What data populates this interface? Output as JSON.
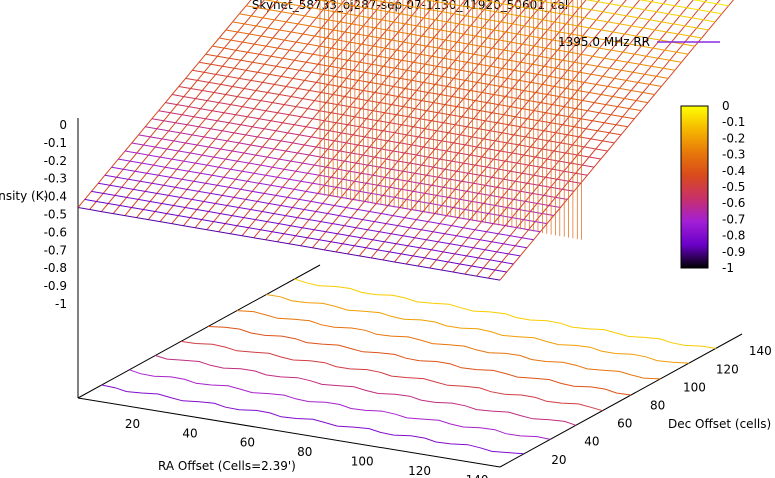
{
  "chart_data": {
    "type": "surface",
    "title": "Skynet_58733_oj287-sep-07-1130_41920_50601_cal",
    "xlabel": "RA Offset (Cells=2.39')",
    "ylabel": "Dec Offset (cells)",
    "zlabel": "Intensity (K)",
    "xticks": [
      "20",
      "40",
      "60",
      "80",
      "100",
      "120",
      "140"
    ],
    "yticks": [
      "20",
      "40",
      "60",
      "80",
      "100",
      "120",
      "140"
    ],
    "zticks": [
      "0",
      "-0.1",
      "-0.2",
      "-0.3",
      "-0.4",
      "-0.5",
      "-0.6",
      "-0.7",
      "-0.8",
      "-0.9",
      "-1"
    ],
    "xlim": [
      1,
      148
    ],
    "ylim": [
      1,
      148
    ],
    "zlim": [
      -1,
      0
    ],
    "series": [
      {
        "name": "1395.0 MHz RR",
        "color": "#8a2be2",
        "surface_model": "plane",
        "corner_values": {
          "ra_1_dec_1": -0.88,
          "ra_148_dec_1": -0.9,
          "ra_1_dec_148": 0.0,
          "ra_148_dec_148": -0.02
        }
      }
    ],
    "colorbox": {
      "range": [
        -1,
        0
      ],
      "ticks": [
        "0",
        "-0.1",
        "-0.2",
        "-0.3",
        "-0.4",
        "-0.5",
        "-0.6",
        "-0.7",
        "-0.8",
        "-0.9",
        "-1"
      ],
      "palette": [
        "#000000",
        "#6a00c8",
        "#a21fd6",
        "#c8306a",
        "#d94a1c",
        "#e8790a",
        "#f5b800",
        "#ffff00"
      ]
    },
    "contours": {
      "levels": [
        -0.9,
        -0.8,
        -0.7,
        -0.6,
        -0.5,
        -0.4,
        -0.3,
        -0.2,
        -0.1
      ]
    },
    "view": {
      "rot_x": 60,
      "rot_z": 30
    },
    "grid": false
  }
}
